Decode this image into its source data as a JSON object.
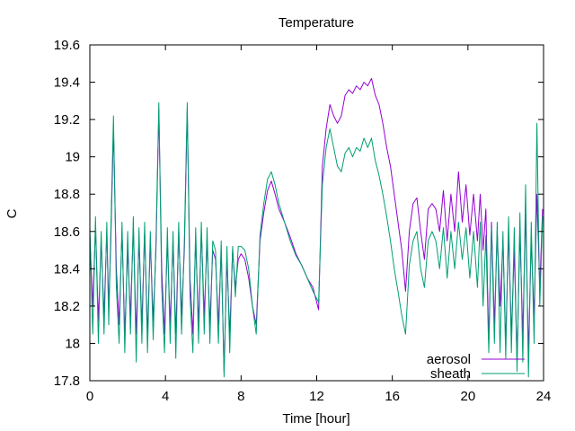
{
  "chart_data": {
    "type": "line",
    "title": "Temperature",
    "xlabel": "Time [hour]",
    "ylabel": "C",
    "xlim": [
      0,
      24
    ],
    "ylim": [
      17.8,
      19.6
    ],
    "xticks": [
      0,
      4,
      8,
      12,
      16,
      20,
      24
    ],
    "yticks": [
      17.8,
      18,
      18.2,
      18.4,
      18.6,
      18.8,
      19,
      19.2,
      19.4,
      19.6
    ],
    "ytick_labels": [
      "17.8",
      "18",
      "18.2",
      "18.4",
      "18.6",
      "18.8",
      "19",
      "19.2",
      "19.4",
      "19.6"
    ],
    "grid": false,
    "legend_position": "bottom-right",
    "series": [
      {
        "name": "aerosol",
        "color": "#9400d3",
        "x": [
          0,
          0.15,
          0.3,
          0.45,
          0.6,
          0.75,
          0.9,
          1.0,
          1.1,
          1.25,
          1.4,
          1.55,
          1.7,
          1.85,
          2.0,
          2.15,
          2.3,
          2.45,
          2.6,
          2.75,
          2.9,
          3.05,
          3.2,
          3.35,
          3.5,
          3.65,
          3.8,
          3.95,
          4.1,
          4.25,
          4.4,
          4.55,
          4.7,
          4.85,
          5.0,
          5.15,
          5.3,
          5.45,
          5.6,
          5.75,
          5.9,
          6.05,
          6.2,
          6.35,
          6.5,
          6.65,
          6.8,
          6.95,
          7.1,
          7.25,
          7.4,
          7.55,
          7.7,
          7.85,
          8.0,
          8.2,
          8.4,
          8.6,
          8.8,
          9.0,
          9.2,
          9.4,
          9.6,
          9.8,
          10.0,
          10.3,
          10.6,
          10.9,
          11.2,
          11.5,
          11.8,
          12.1,
          12.3,
          12.5,
          12.7,
          12.9,
          13.1,
          13.3,
          13.5,
          13.7,
          13.9,
          14.1,
          14.3,
          14.5,
          14.7,
          14.9,
          15.1,
          15.3,
          15.5,
          15.7,
          15.9,
          16.1,
          16.3,
          16.5,
          16.7,
          16.9,
          17.1,
          17.3,
          17.5,
          17.7,
          17.9,
          18.1,
          18.3,
          18.5,
          18.7,
          18.9,
          19.1,
          19.3,
          19.5,
          19.7,
          19.9,
          20.1,
          20.3,
          20.5,
          20.65,
          20.8,
          20.95,
          21.1,
          21.25,
          21.4,
          21.55,
          21.7,
          21.85,
          22.0,
          22.15,
          22.3,
          22.45,
          22.6,
          22.75,
          22.9,
          23.05,
          23.2,
          23.35,
          23.5,
          23.65,
          23.8,
          23.95
        ],
        "y": [
          18.58,
          18.2,
          18.62,
          18.12,
          18.55,
          18.15,
          18.6,
          18.2,
          18.5,
          19.15,
          18.4,
          18.1,
          18.6,
          18.05,
          18.5,
          18.15,
          18.62,
          18.05,
          18.55,
          18.1,
          18.6,
          18.05,
          18.55,
          18.12,
          18.5,
          19.25,
          18.4,
          18.05,
          18.55,
          18.1,
          18.55,
          18.05,
          18.6,
          18.15,
          18.5,
          19.25,
          18.35,
          18.05,
          18.55,
          18.1,
          18.6,
          18.15,
          18.55,
          18.1,
          18.5,
          18.45,
          18.1,
          18.5,
          17.85,
          18.45,
          18.05,
          18.5,
          18.3,
          18.45,
          18.48,
          18.45,
          18.35,
          18.2,
          18.1,
          18.55,
          18.7,
          18.82,
          18.87,
          18.8,
          18.72,
          18.65,
          18.57,
          18.48,
          18.42,
          18.35,
          18.3,
          18.18,
          18.95,
          19.15,
          19.28,
          19.22,
          19.18,
          19.22,
          19.33,
          19.36,
          19.34,
          19.38,
          19.36,
          19.4,
          19.38,
          19.42,
          19.33,
          19.28,
          19.18,
          19.05,
          18.95,
          18.8,
          18.65,
          18.5,
          18.28,
          18.6,
          18.75,
          18.78,
          18.6,
          18.45,
          18.72,
          18.75,
          18.72,
          18.6,
          18.82,
          18.55,
          18.8,
          18.6,
          18.92,
          18.65,
          18.85,
          18.58,
          18.8,
          18.55,
          18.8,
          18.5,
          18.72,
          18.0,
          18.65,
          18.1,
          18.6,
          18.2,
          18.55,
          18.0,
          18.6,
          18.05,
          18.5,
          17.9,
          18.6,
          18.05,
          18.7,
          17.95,
          18.55,
          18.15,
          18.8,
          18.3,
          18.72
        ],
        "note_x_unit": "hours"
      },
      {
        "name": "sheath",
        "color": "#009e73",
        "x": [
          0,
          0.15,
          0.3,
          0.45,
          0.6,
          0.75,
          0.9,
          1.0,
          1.1,
          1.25,
          1.4,
          1.55,
          1.7,
          1.85,
          2.0,
          2.15,
          2.3,
          2.45,
          2.6,
          2.75,
          2.9,
          3.05,
          3.2,
          3.35,
          3.5,
          3.65,
          3.8,
          3.95,
          4.1,
          4.25,
          4.4,
          4.55,
          4.7,
          4.85,
          5.0,
          5.15,
          5.3,
          5.45,
          5.6,
          5.75,
          5.9,
          6.05,
          6.2,
          6.35,
          6.5,
          6.65,
          6.8,
          6.95,
          7.1,
          7.25,
          7.4,
          7.55,
          7.7,
          7.85,
          8.0,
          8.2,
          8.4,
          8.6,
          8.8,
          9.0,
          9.2,
          9.4,
          9.6,
          9.8,
          10.0,
          10.3,
          10.6,
          10.9,
          11.2,
          11.5,
          11.8,
          12.1,
          12.3,
          12.5,
          12.7,
          12.9,
          13.1,
          13.3,
          13.5,
          13.7,
          13.9,
          14.1,
          14.3,
          14.5,
          14.7,
          14.9,
          15.1,
          15.3,
          15.5,
          15.7,
          15.9,
          16.1,
          16.3,
          16.5,
          16.7,
          16.9,
          17.1,
          17.3,
          17.5,
          17.7,
          17.9,
          18.1,
          18.3,
          18.5,
          18.7,
          18.9,
          19.1,
          19.3,
          19.5,
          19.7,
          19.9,
          20.1,
          20.3,
          20.5,
          20.65,
          20.8,
          20.95,
          21.1,
          21.25,
          21.4,
          21.55,
          21.7,
          21.85,
          22.0,
          22.15,
          22.3,
          22.45,
          22.6,
          22.75,
          22.9,
          23.05,
          23.2,
          23.35,
          23.5,
          23.65,
          23.8,
          23.95
        ],
        "y": [
          18.62,
          18.05,
          18.68,
          18.0,
          18.6,
          18.05,
          18.65,
          18.1,
          18.55,
          19.22,
          18.3,
          18.0,
          18.65,
          17.95,
          18.6,
          18.05,
          18.68,
          17.9,
          18.62,
          18.0,
          18.65,
          17.95,
          18.6,
          18.02,
          18.55,
          19.29,
          18.3,
          17.95,
          18.62,
          18.0,
          18.6,
          17.92,
          18.65,
          18.05,
          18.55,
          19.29,
          18.25,
          17.95,
          18.62,
          18.0,
          18.65,
          18.05,
          18.62,
          18.0,
          18.55,
          18.5,
          18.0,
          18.55,
          17.82,
          18.52,
          17.95,
          18.52,
          18.25,
          18.52,
          18.52,
          18.5,
          18.4,
          18.2,
          18.05,
          18.58,
          18.75,
          18.88,
          18.92,
          18.85,
          18.75,
          18.65,
          18.55,
          18.47,
          18.42,
          18.35,
          18.28,
          18.22,
          18.85,
          19.05,
          19.15,
          19.05,
          18.95,
          18.92,
          19.02,
          19.05,
          19.0,
          19.05,
          19.03,
          19.1,
          19.05,
          19.1,
          18.98,
          18.9,
          18.8,
          18.68,
          18.55,
          18.4,
          18.28,
          18.15,
          18.05,
          18.42,
          18.55,
          18.6,
          18.4,
          18.3,
          18.55,
          18.6,
          18.55,
          18.4,
          18.62,
          18.35,
          18.6,
          18.4,
          18.65,
          18.45,
          18.62,
          18.35,
          18.6,
          18.3,
          18.65,
          18.2,
          18.58,
          17.95,
          18.62,
          18.0,
          18.65,
          17.95,
          18.6,
          17.92,
          18.68,
          17.95,
          18.62,
          17.85,
          18.7,
          17.9,
          18.85,
          17.82,
          18.65,
          18.0,
          19.18,
          18.2,
          18.68
        ]
      }
    ]
  }
}
